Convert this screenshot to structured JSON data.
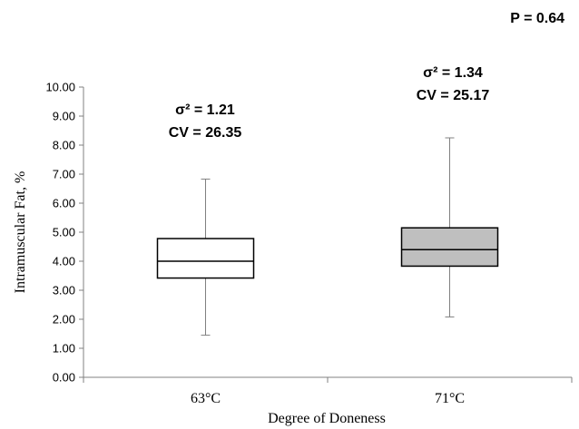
{
  "chart_data": {
    "type": "box",
    "title": "",
    "xlabel": "Degree of Doneness",
    "ylabel": "Intramuscular Fat, %",
    "ylim": [
      0,
      10
    ],
    "yticks": [
      "0.00",
      "1.00",
      "2.00",
      "3.00",
      "4.00",
      "5.00",
      "6.00",
      "7.00",
      "8.00",
      "9.00",
      "10.00"
    ],
    "categories": [
      "63°C",
      "71°C"
    ],
    "boxes": [
      {
        "category": "63°C",
        "min": 1.45,
        "q1": 3.42,
        "median": 4.0,
        "q3": 4.78,
        "max": 6.83,
        "fill": "#ffffff"
      },
      {
        "category": "71°C",
        "min": 2.08,
        "q1": 3.83,
        "median": 4.4,
        "q3": 5.15,
        "max": 8.25,
        "fill": "#bfbfbf"
      }
    ],
    "annotations": {
      "p_value": "P = 0.64",
      "g1_variance": "σ² = 1.21",
      "g1_cv": "CV = 26.35",
      "g2_variance": "σ² = 1.34",
      "g2_cv": "CV = 25.17"
    },
    "grid": false,
    "legend": "none"
  },
  "colors": {
    "axis": "#808080",
    "box_stroke": "#000000",
    "whisker": "#808080"
  }
}
